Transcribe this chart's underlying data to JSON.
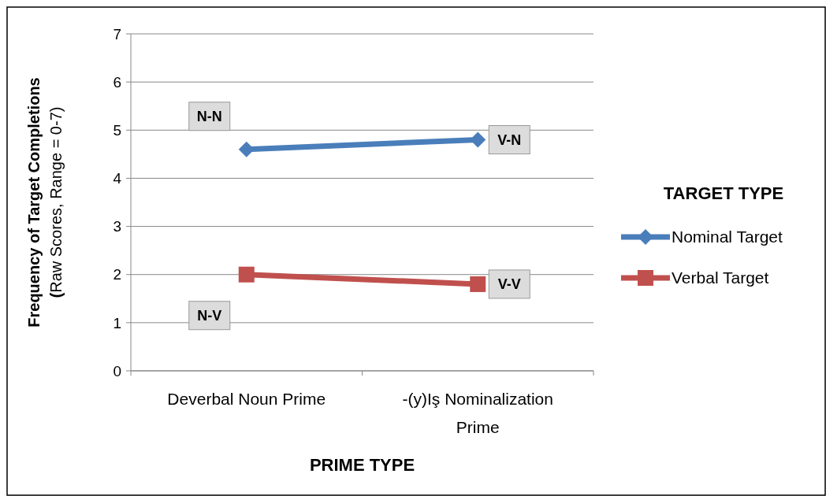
{
  "chart_data": {
    "type": "line",
    "xlabel": "PRIME TYPE",
    "ylabel": "Frequency of Target Completions (Raw Scores, Range = 0-7)",
    "legend_title": "TARGET TYPE",
    "categories": [
      "Deverbal Noun Prime",
      "-(y)Iş Nominalization Prime"
    ],
    "series": [
      {
        "name": "Nominal Target",
        "color": "#4a7ebb",
        "values": [
          4.6,
          4.8
        ],
        "marker": "diamond"
      },
      {
        "name": "Verbal Target",
        "color": "#c0504d",
        "values": [
          2.0,
          1.8
        ],
        "marker": "square"
      }
    ],
    "ylim": [
      0,
      7
    ],
    "yticks": [
      0,
      1,
      2,
      3,
      4,
      5,
      6,
      7
    ],
    "grid": "y",
    "legend": "right",
    "annotations": [
      {
        "text": "N-N",
        "x": "Deverbal Noun Prime",
        "y": 4.6
      },
      {
        "text": "V-N",
        "x": "-(y)Iş Nominalization Prime",
        "y": 4.8
      },
      {
        "text": "N-V",
        "x": "Deverbal Noun Prime",
        "y": 2.0
      },
      {
        "text": "V-V",
        "x": "-(y)Iş Nominalization Prime",
        "y": 1.8
      }
    ]
  }
}
